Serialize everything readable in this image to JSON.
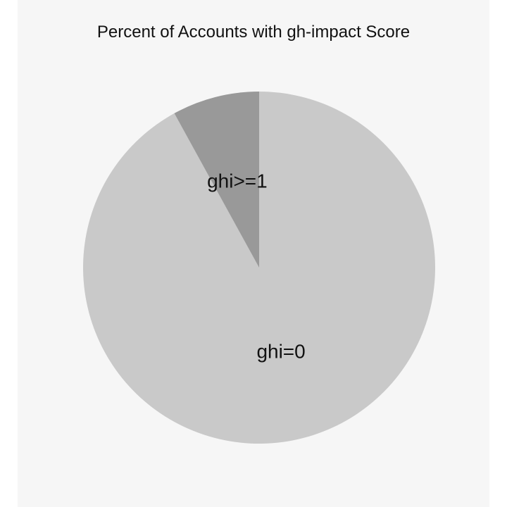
{
  "chart_data": {
    "type": "pie",
    "title": "Percent of Accounts with gh-impact Score",
    "slices": [
      {
        "label": "ghi=0",
        "value": 92,
        "color": "#c9c9c9"
      },
      {
        "label": "ghi>=1",
        "value": 8,
        "color": "#999999"
      }
    ],
    "legend": "none",
    "background": "#f6f6f6"
  }
}
